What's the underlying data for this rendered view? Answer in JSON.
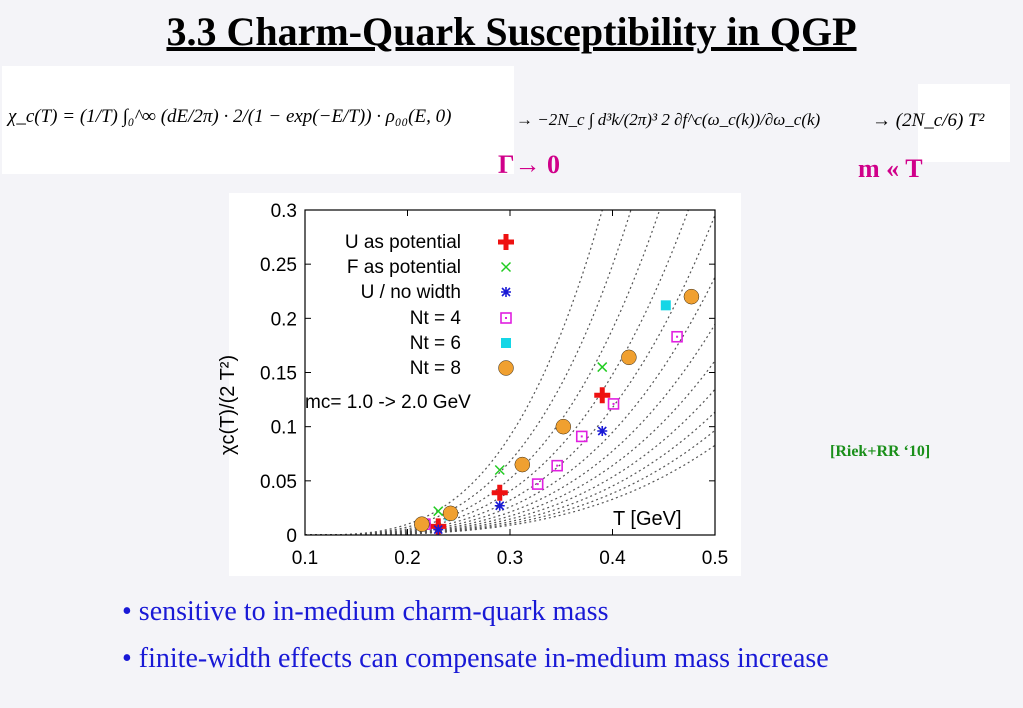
{
  "slide": {
    "title": "3.3 Charm-Quark Susceptibility  in QGP",
    "formula_lhs": "χ_c(T) = (1/T) ∫₀^∞ (dE/2π) · 2/(1 − exp(−E/T)) · ρ₀₀(E, 0)",
    "formula_mid": "→ −2N_c ∫ d³k/(2π)³ 2 ∂f^c(ω_c(k))/∂ω_c(k)",
    "formula_rhs": "→  (2N_c/6) T²",
    "gamma_note": "Γ→ 0",
    "mass_note": "m « T",
    "citation": "[Riek+RR ‘10]",
    "bullets": [
      "• sensitive to in-medium charm-quark mass",
      "• finite-width effects can compensate in-medium mass increase"
    ]
  },
  "chart_data": {
    "type": "scatter",
    "xlabel": "T [GeV]",
    "ylabel": "χc(T)/(2 T²)",
    "xlim": [
      0.1,
      0.5
    ],
    "ylim": [
      0,
      0.3
    ],
    "xticks": [
      "0.1",
      "0.2",
      "0.3",
      "0.4",
      "0.5"
    ],
    "yticks": [
      "0",
      "0.05",
      "0.1",
      "0.15",
      "0.2",
      "0.25",
      "0.3"
    ],
    "annotation": "mc= 1.0 -> 2.0 GeV",
    "legend_position": "top-left",
    "series": [
      {
        "name": "U as potential",
        "marker": "plus",
        "color": "#ee1111",
        "x": [
          0.23,
          0.29,
          0.39
        ],
        "y": [
          0.008,
          0.039,
          0.129
        ]
      },
      {
        "name": "F as potential",
        "marker": "cross",
        "color": "#22cc22",
        "x": [
          0.23,
          0.29,
          0.39
        ],
        "y": [
          0.022,
          0.06,
          0.155
        ]
      },
      {
        "name": "U / no width",
        "marker": "asterisk",
        "color": "#1a1ad6",
        "x": [
          0.23,
          0.29,
          0.39
        ],
        "y": [
          0.005,
          0.027,
          0.096
        ]
      },
      {
        "name": "Nt = 4",
        "marker": "dotted-square",
        "color": "#e020e0",
        "x": [
          0.217,
          0.327,
          0.346,
          0.37,
          0.401,
          0.463
        ],
        "y": [
          0.01,
          0.047,
          0.064,
          0.091,
          0.121,
          0.183
        ]
      },
      {
        "name": "Nt = 6",
        "marker": "filled-square",
        "color": "#14d6e6",
        "x": [
          0.241,
          0.452
        ],
        "y": [
          0.018,
          0.212
        ]
      },
      {
        "name": "Nt = 8",
        "marker": "circle",
        "color": "#f0a030",
        "x": [
          0.214,
          0.242,
          0.312,
          0.352,
          0.416,
          0.477
        ],
        "y": [
          0.01,
          0.02,
          0.065,
          0.1,
          0.164,
          0.22
        ]
      }
    ],
    "curves": {
      "style": "dotted",
      "color": "#555555",
      "mass_range_GeV": [
        1.0,
        2.0
      ]
    }
  }
}
